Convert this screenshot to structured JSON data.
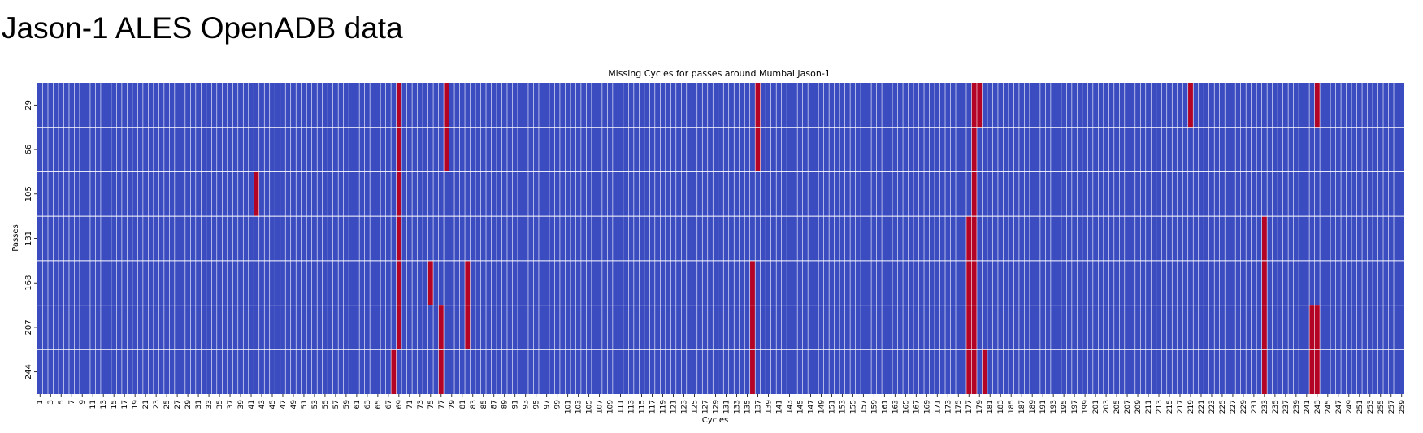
{
  "page": {
    "heading": "Jason-1 ALES OpenADB data"
  },
  "chart_data": {
    "type": "heatmap",
    "title": "Missing Cycles for passes around Mumbai Jason-1",
    "xlabel": "Cycles",
    "ylabel": "Passes",
    "rows": [
      "29",
      "66",
      "105",
      "131",
      "168",
      "207",
      "244"
    ],
    "cycle_range": [
      1,
      259
    ],
    "x_tick_step": 2,
    "colors": {
      "present": "#3b4cc0",
      "missing": "#b40426",
      "grid": "#ffffff"
    },
    "legend": "none",
    "grid": true,
    "missing": {
      "29": [
        69,
        78,
        137,
        178,
        179,
        219,
        243
      ],
      "66": [
        69,
        78,
        137,
        178
      ],
      "105": [
        42,
        69,
        178
      ],
      "131": [
        69,
        177,
        178,
        233
      ],
      "168": [
        69,
        75,
        82,
        136,
        177,
        178,
        233
      ],
      "207": [
        69,
        77,
        82,
        136,
        177,
        178,
        233,
        242,
        243
      ],
      "244": [
        68,
        77,
        136,
        177,
        178,
        180,
        233,
        242,
        243
      ]
    }
  }
}
